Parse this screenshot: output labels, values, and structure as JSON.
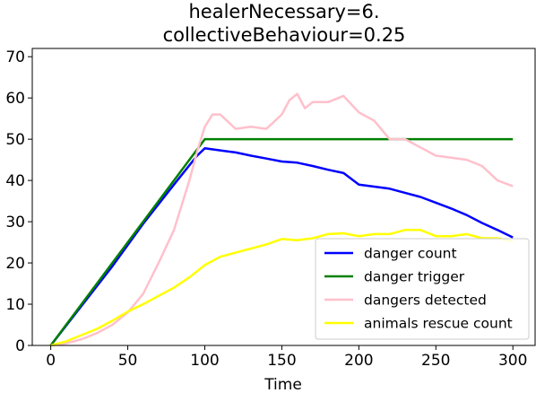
{
  "chart_data": {
    "type": "line",
    "title": [
      "healerNecessary=6.",
      "collectiveBehaviour=0.25"
    ],
    "xlabel": "Time",
    "ylabel": "",
    "xlim": [
      -12,
      315
    ],
    "ylim": [
      0,
      72
    ],
    "xticks": [
      0,
      50,
      100,
      150,
      200,
      250,
      300
    ],
    "yticks": [
      0,
      10,
      20,
      30,
      40,
      50,
      60,
      70
    ],
    "grid": false,
    "legend_position": "lower-right",
    "series": [
      {
        "name": "danger count",
        "color": "#0000ff",
        "x": [
          0,
          20,
          40,
          60,
          80,
          95,
          100,
          110,
          120,
          130,
          140,
          150,
          160,
          170,
          180,
          190,
          200,
          210,
          220,
          230,
          240,
          250,
          260,
          270,
          280,
          290,
          300
        ],
        "y": [
          0,
          9.6,
          19.2,
          29.5,
          39,
          46,
          47.8,
          47.3,
          46.8,
          46,
          45.3,
          44.6,
          44.3,
          43.5,
          42.6,
          41.8,
          39,
          38.5,
          38,
          37,
          36,
          34.6,
          33.2,
          31.6,
          29.7,
          28,
          26.2
        ]
      },
      {
        "name": "danger trigger",
        "color": "#008000",
        "x": [
          0,
          100,
          300
        ],
        "y": [
          0,
          50,
          50
        ]
      },
      {
        "name": "dangers detected",
        "color": "#ffc0cb",
        "x": [
          0,
          10,
          20,
          30,
          40,
          50,
          60,
          70,
          80,
          90,
          95,
          100,
          105,
          110,
          120,
          130,
          140,
          150,
          155,
          160,
          165,
          170,
          180,
          190,
          200,
          210,
          220,
          230,
          240,
          250,
          260,
          270,
          280,
          290,
          300
        ],
        "y": [
          0,
          0.5,
          1.5,
          3,
          5,
          8,
          12.5,
          20,
          28,
          40,
          47,
          53,
          56,
          56,
          52.5,
          53,
          52.5,
          56,
          59.5,
          61,
          57.5,
          59,
          59,
          60.5,
          56.5,
          54.5,
          50,
          50,
          48,
          46,
          45.5,
          45,
          43.5,
          40,
          38.6
        ]
      },
      {
        "name": "animals rescue count",
        "color": "#ffff00",
        "x": [
          0,
          10,
          20,
          30,
          40,
          50,
          60,
          70,
          80,
          90,
          100,
          110,
          120,
          130,
          140,
          150,
          160,
          170,
          180,
          190,
          200,
          210,
          220,
          230,
          240,
          250,
          260,
          270,
          280,
          290,
          300
        ],
        "y": [
          0,
          1,
          2.5,
          4,
          6,
          8.2,
          10,
          12,
          14,
          16.5,
          19.5,
          21.5,
          22.5,
          23.5,
          24.5,
          25.8,
          25.5,
          26,
          27,
          27.2,
          26.5,
          27,
          27,
          28,
          28,
          26.5,
          26.5,
          27,
          26,
          26,
          25.2
        ]
      }
    ]
  }
}
